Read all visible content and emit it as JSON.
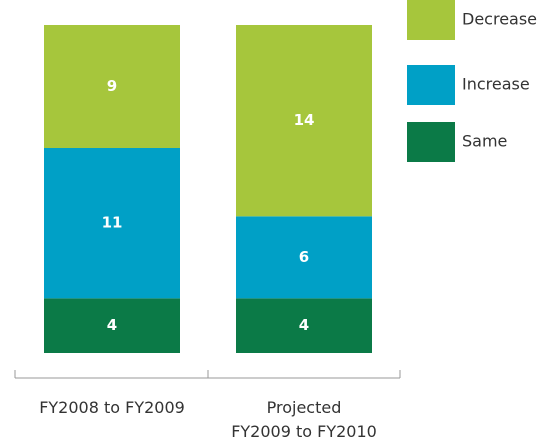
{
  "chart_data": {
    "type": "stacked_bar",
    "categories": [
      "FY2008 to FY2009",
      "Projected\nFY2009 to FY2010"
    ],
    "series": [
      {
        "name": "Same",
        "color": "#0b7a47",
        "values": [
          4,
          4
        ]
      },
      {
        "name": "Increase",
        "color": "#00a0c6",
        "values": [
          11,
          6
        ]
      },
      {
        "name": "Decrease",
        "color": "#a6c63c",
        "values": [
          9,
          14
        ]
      }
    ],
    "ylim": [
      0,
      24
    ]
  }
}
